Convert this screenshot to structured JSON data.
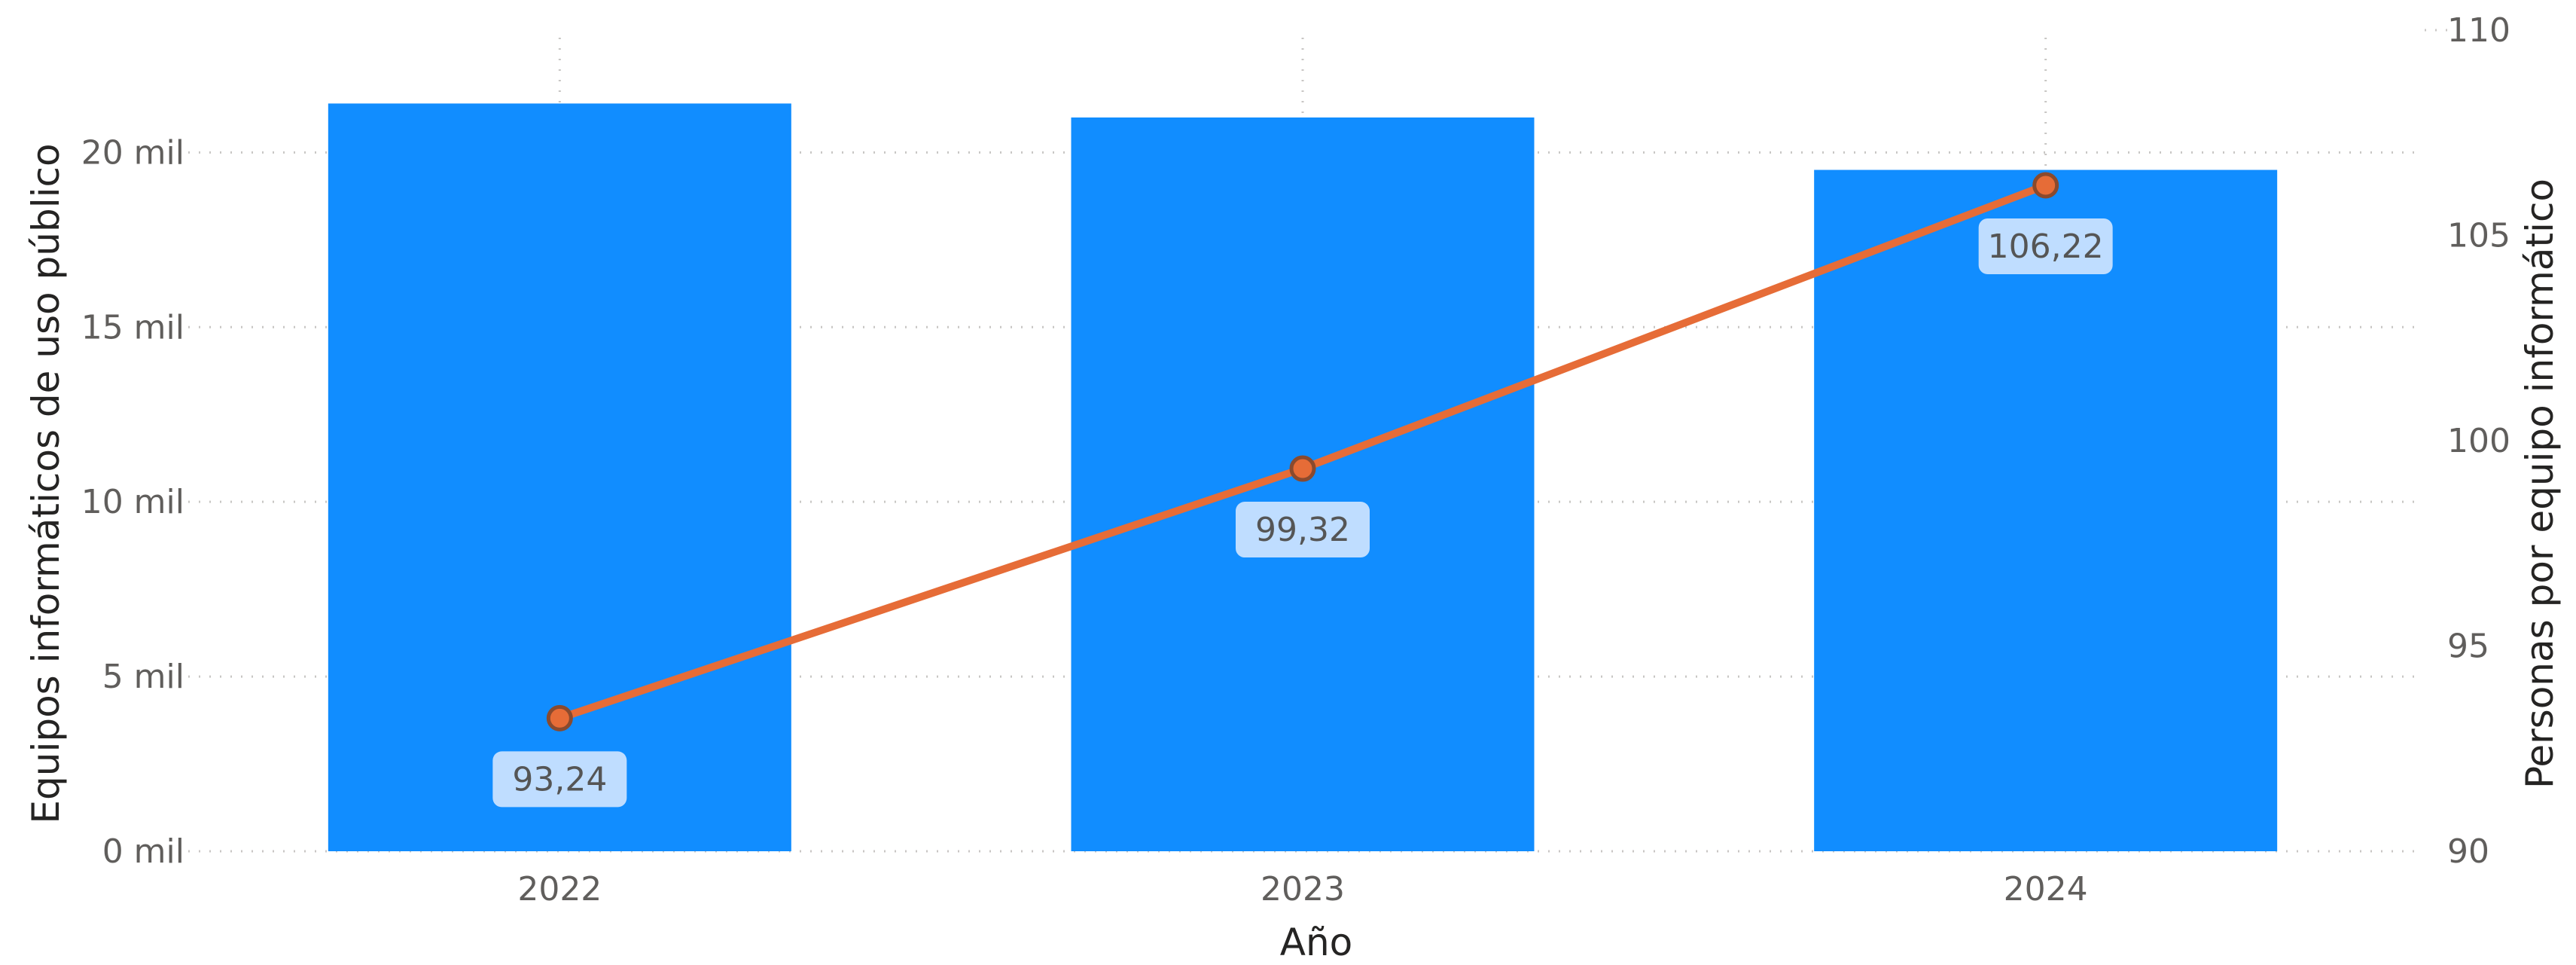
{
  "chart_data": {
    "type": "bar+line",
    "categories": [
      "2022",
      "2023",
      "2024"
    ],
    "xlabel": "Año",
    "ylabel_left": "Equipos informáticos de uso público",
    "ylabel_right": "Personas por equipo informático",
    "left_axis": {
      "ticks": [
        "0 mil",
        "5 mil",
        "10 mil",
        "15 mil",
        "20 mil"
      ],
      "tick_values": [
        0,
        5000,
        10000,
        15000,
        20000
      ],
      "range": [
        0,
        23500
      ]
    },
    "right_axis": {
      "ticks": [
        "90",
        "95",
        "100",
        "105",
        "110"
      ],
      "tick_values": [
        90,
        95,
        100,
        105,
        110
      ],
      "range": [
        90,
        110
      ]
    },
    "grid": true,
    "bar_series": {
      "values": [
        21400,
        21000,
        19500
      ],
      "color": "#118DFF"
    },
    "line_series": {
      "values": [
        93.24,
        99.32,
        106.22
      ],
      "labels": [
        "93,24",
        "99,32",
        "106,22"
      ],
      "color": "#E66C37"
    },
    "label_background": "#BFDDFF"
  }
}
